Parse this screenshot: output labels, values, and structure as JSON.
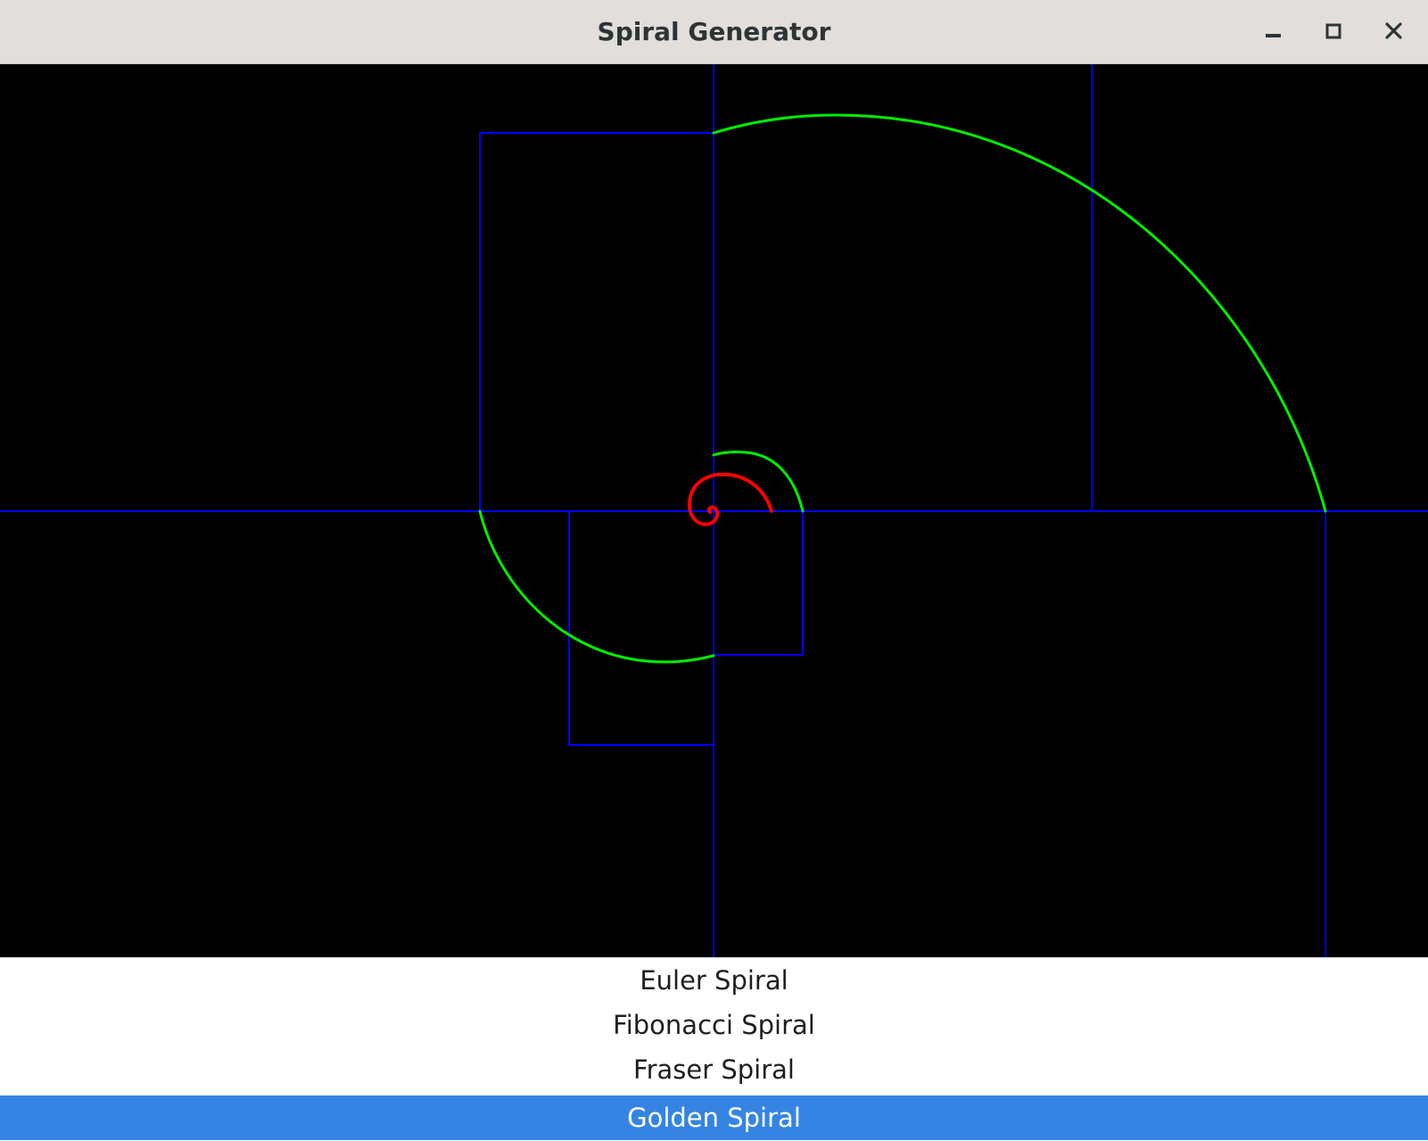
{
  "window": {
    "title": "Spiral Generator"
  },
  "titlebar_buttons": {
    "minimize_icon": "minimize-icon",
    "maximize_icon": "maximize-icon",
    "close_icon": "close-icon"
  },
  "colors": {
    "canvas_background": "#000000",
    "guide_lines": "#0000ff",
    "outer_spiral": "#00ee00",
    "inner_spiral": "#ff0000",
    "selection": "#3584e4"
  },
  "spiral_list": {
    "items": [
      {
        "label": "Euler Spiral",
        "selected": false
      },
      {
        "label": "Fibonacci Spiral",
        "selected": false
      },
      {
        "label": "Fraser Spiral",
        "selected": false
      },
      {
        "label": "Golden Spiral",
        "selected": true
      }
    ]
  }
}
